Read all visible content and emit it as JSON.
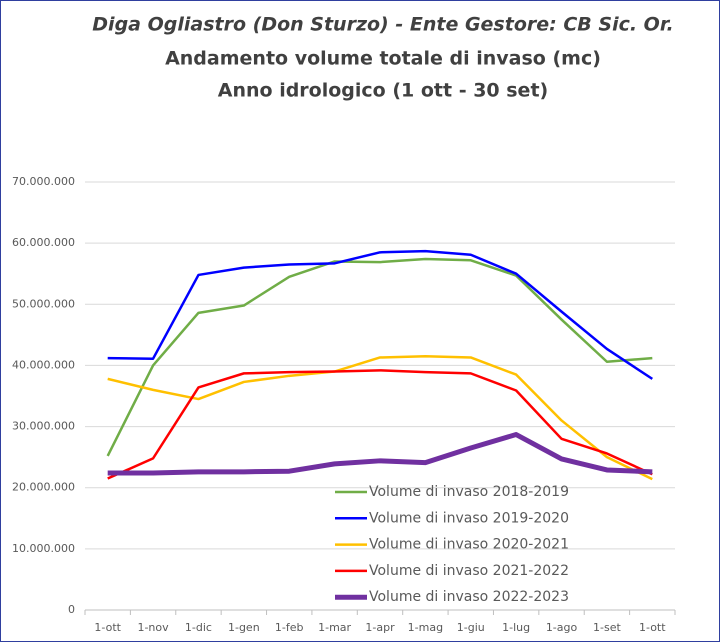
{
  "chart_data": {
    "type": "line",
    "title_lines": [
      "Diga Ogliastro (Don Sturzo)  - Ente Gestore: CB Sic. Or.",
      "Andamento volume totale di invaso (mc)",
      "Anno idrologico (1 ott - 30 set)"
    ],
    "categories": [
      "1-ott",
      "1-nov",
      "1-dic",
      "1-gen",
      "1-feb",
      "1-mar",
      "1-apr",
      "1-mag",
      "1-giu",
      "1-lug",
      "1-ago",
      "1-set",
      "1-ott"
    ],
    "series": [
      {
        "name": "Volume di invaso 2018-2019",
        "color": "#70ad47",
        "width": 2.5,
        "values": [
          25200000,
          40000000,
          48600000,
          49800000,
          54500000,
          57000000,
          56900000,
          57400000,
          57200000,
          54700000,
          47500000,
          40600000,
          41200000
        ]
      },
      {
        "name": "Volume di invaso 2019-2020",
        "color": "#0000ff",
        "width": 2.5,
        "values": [
          41200000,
          41100000,
          54800000,
          56000000,
          56500000,
          56700000,
          58500000,
          58700000,
          58100000,
          55000000,
          48800000,
          42700000,
          37800000
        ]
      },
      {
        "name": "Volume di invaso 2020-2021",
        "color": "#ffc000",
        "width": 2.5,
        "values": [
          37800000,
          36000000,
          34500000,
          37300000,
          38300000,
          39000000,
          41300000,
          41500000,
          41300000,
          38500000,
          31000000,
          25000000,
          21400000
        ]
      },
      {
        "name": "Volume di invaso 2021-2022",
        "color": "#ff0000",
        "width": 2.5,
        "values": [
          21500000,
          24800000,
          36400000,
          38700000,
          38900000,
          39000000,
          39200000,
          38900000,
          38700000,
          35900000,
          28000000,
          25600000,
          22200000
        ]
      },
      {
        "name": "Volume di invaso 2022-2023",
        "color": "#7030a0",
        "width": 5,
        "values": [
          22400000,
          22400000,
          22600000,
          22600000,
          22700000,
          23900000,
          24400000,
          24100000,
          26500000,
          28700000,
          24700000,
          22900000,
          22600000
        ]
      }
    ],
    "ylim": [
      0,
      70000000
    ],
    "yticks": [
      0,
      {
        "value": 10000000,
        "label": "10.000.000"
      },
      {
        "value": 20000000,
        "label": "20.000.000"
      },
      {
        "value": 30000000,
        "label": "30.000.000"
      },
      {
        "value": 40000000,
        "label": "40.000.000"
      },
      {
        "value": 50000000,
        "label": "50.000.000"
      },
      {
        "value": 60000000,
        "label": "60.000.000"
      },
      {
        "value": 70000000,
        "label": "70.000.000"
      }
    ],
    "grid": true
  }
}
